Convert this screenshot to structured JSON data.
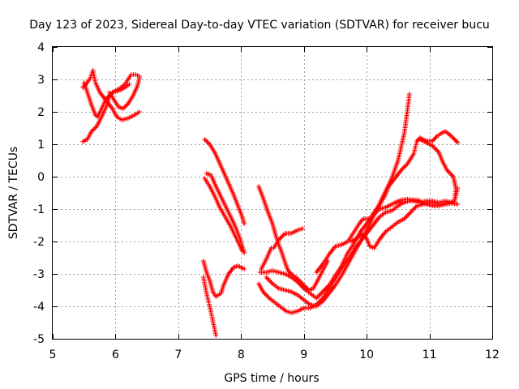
{
  "chart_data": {
    "type": "scatter",
    "title": "Day 123 of 2023, Sidereal Day-to-day VTEC variation (SDTVAR) for receiver bucu",
    "xlabel": "GPS time / hours",
    "ylabel": "SDTVAR / TECUs",
    "xlim": [
      5,
      12
    ],
    "ylim": [
      -5,
      4
    ],
    "xticks": [
      5,
      6,
      7,
      8,
      9,
      10,
      11,
      12
    ],
    "yticks": [
      -5,
      -4,
      -3,
      -2,
      -1,
      0,
      1,
      2,
      3,
      4
    ],
    "grid": true,
    "marker": "+",
    "color": "#ff0000",
    "series": [
      {
        "points": [
          [
            5.48,
            1.08
          ],
          [
            5.55,
            1.15
          ],
          [
            5.62,
            1.4
          ],
          [
            5.7,
            1.55
          ],
          [
            5.78,
            1.85
          ],
          [
            5.85,
            2.15
          ],
          [
            5.9,
            2.45
          ],
          [
            5.95,
            2.6
          ],
          [
            6.05,
            2.7
          ],
          [
            6.15,
            2.85
          ],
          [
            6.2,
            3.0
          ],
          [
            6.25,
            3.15
          ],
          [
            6.32,
            3.15
          ],
          [
            6.38,
            3.1
          ]
        ]
      },
      {
        "points": [
          [
            5.48,
            2.75
          ],
          [
            5.55,
            2.9
          ],
          [
            5.6,
            3.05
          ],
          [
            5.64,
            3.28
          ],
          [
            5.68,
            2.9
          ],
          [
            5.75,
            2.6
          ],
          [
            5.85,
            2.35
          ],
          [
            5.95,
            2.1
          ],
          [
            6.02,
            1.85
          ],
          [
            6.1,
            1.75
          ],
          [
            6.2,
            1.8
          ],
          [
            6.3,
            1.9
          ],
          [
            6.38,
            2.0
          ]
        ]
      },
      {
        "points": [
          [
            5.5,
            2.9
          ],
          [
            5.56,
            2.55
          ],
          [
            5.62,
            2.2
          ],
          [
            5.68,
            1.9
          ],
          [
            5.72,
            1.85
          ],
          [
            5.78,
            2.1
          ],
          [
            5.85,
            2.4
          ],
          [
            5.95,
            2.6
          ],
          [
            6.05,
            2.65
          ],
          [
            6.15,
            2.75
          ],
          [
            6.22,
            2.85
          ]
        ]
      },
      {
        "points": [
          [
            5.9,
            2.6
          ],
          [
            6.0,
            2.3
          ],
          [
            6.05,
            2.15
          ],
          [
            6.12,
            2.1
          ],
          [
            6.2,
            2.25
          ],
          [
            6.28,
            2.5
          ],
          [
            6.35,
            2.8
          ],
          [
            6.38,
            3.05
          ]
        ]
      },
      {
        "points": [
          [
            7.42,
            1.15
          ],
          [
            7.5,
            1.0
          ],
          [
            7.58,
            0.75
          ],
          [
            7.65,
            0.45
          ],
          [
            7.72,
            0.15
          ],
          [
            7.8,
            -0.2
          ],
          [
            7.88,
            -0.55
          ],
          [
            7.95,
            -0.9
          ],
          [
            8.02,
            -1.25
          ],
          [
            8.05,
            -1.45
          ]
        ]
      },
      {
        "points": [
          [
            7.45,
            0.1
          ],
          [
            7.52,
            0.05
          ],
          [
            7.6,
            -0.3
          ],
          [
            7.7,
            -0.7
          ],
          [
            7.8,
            -1.1
          ],
          [
            7.9,
            -1.5
          ],
          [
            7.98,
            -1.9
          ],
          [
            8.05,
            -2.35
          ]
        ]
      },
      {
        "points": [
          [
            7.42,
            -0.05
          ],
          [
            7.5,
            -0.3
          ],
          [
            7.58,
            -0.6
          ],
          [
            7.66,
            -0.95
          ],
          [
            7.75,
            -1.25
          ],
          [
            7.85,
            -1.6
          ],
          [
            7.95,
            -2.0
          ],
          [
            8.02,
            -2.3
          ]
        ]
      },
      {
        "points": [
          [
            7.4,
            -2.6
          ],
          [
            7.45,
            -2.95
          ],
          [
            7.5,
            -3.2
          ],
          [
            7.55,
            -3.55
          ],
          [
            7.6,
            -3.7
          ],
          [
            7.68,
            -3.6
          ],
          [
            7.72,
            -3.35
          ],
          [
            7.8,
            -3.0
          ],
          [
            7.88,
            -2.8
          ],
          [
            7.95,
            -2.75
          ],
          [
            8.05,
            -2.85
          ]
        ]
      },
      {
        "points": [
          [
            7.4,
            -3.1
          ],
          [
            7.45,
            -3.6
          ],
          [
            7.5,
            -4.0
          ],
          [
            7.55,
            -4.45
          ],
          [
            7.6,
            -4.9
          ]
        ]
      },
      {
        "points": [
          [
            8.28,
            -0.3
          ],
          [
            8.35,
            -0.65
          ],
          [
            8.42,
            -1.05
          ],
          [
            8.5,
            -1.45
          ],
          [
            8.55,
            -1.8
          ],
          [
            8.6,
            -2.1
          ],
          [
            8.65,
            -2.35
          ],
          [
            8.7,
            -2.65
          ],
          [
            8.75,
            -2.9
          ],
          [
            8.8,
            -3.0
          ],
          [
            8.9,
            -3.15
          ],
          [
            9.0,
            -3.35
          ],
          [
            9.08,
            -3.5
          ],
          [
            9.15,
            -3.45
          ],
          [
            9.22,
            -3.2
          ],
          [
            9.3,
            -2.9
          ],
          [
            9.38,
            -2.6
          ]
        ]
      },
      {
        "points": [
          [
            8.32,
            -2.85
          ],
          [
            8.4,
            -2.55
          ],
          [
            8.48,
            -2.2
          ],
          [
            8.52,
            -2.2
          ],
          [
            8.6,
            -1.95
          ],
          [
            8.7,
            -1.75
          ],
          [
            8.8,
            -1.75
          ],
          [
            8.9,
            -1.65
          ],
          [
            8.98,
            -1.6
          ]
        ]
      },
      {
        "points": [
          [
            8.28,
            -3.3
          ],
          [
            8.35,
            -3.55
          ],
          [
            8.45,
            -3.75
          ],
          [
            8.55,
            -3.9
          ],
          [
            8.65,
            -4.05
          ],
          [
            8.72,
            -4.15
          ],
          [
            8.8,
            -4.2
          ],
          [
            8.9,
            -4.15
          ],
          [
            9.0,
            -4.05
          ],
          [
            9.1,
            -4.05
          ],
          [
            9.2,
            -3.95
          ],
          [
            9.3,
            -3.75
          ],
          [
            9.4,
            -3.45
          ],
          [
            9.5,
            -3.15
          ],
          [
            9.6,
            -2.85
          ],
          [
            9.7,
            -2.55
          ],
          [
            9.8,
            -2.25
          ],
          [
            9.9,
            -2.0
          ],
          [
            10.0,
            -1.75
          ],
          [
            10.1,
            -1.5
          ],
          [
            10.2,
            -1.25
          ],
          [
            10.3,
            -1.1
          ],
          [
            10.4,
            -1.05
          ],
          [
            10.5,
            -0.9
          ],
          [
            10.6,
            -0.78
          ],
          [
            10.7,
            -0.75
          ],
          [
            10.8,
            -0.72
          ],
          [
            10.85,
            -0.75
          ]
        ]
      },
      {
        "points": [
          [
            8.3,
            -2.95
          ],
          [
            8.4,
            -2.95
          ],
          [
            8.5,
            -2.9
          ],
          [
            8.6,
            -2.95
          ],
          [
            8.7,
            -3.0
          ],
          [
            8.8,
            -3.1
          ],
          [
            8.9,
            -3.25
          ],
          [
            9.0,
            -3.45
          ],
          [
            9.1,
            -3.6
          ],
          [
            9.2,
            -3.75
          ],
          [
            9.3,
            -3.55
          ],
          [
            9.4,
            -3.35
          ],
          [
            9.5,
            -3.05
          ],
          [
            9.6,
            -2.75
          ],
          [
            9.7,
            -2.35
          ],
          [
            9.8,
            -2.05
          ],
          [
            9.9,
            -1.7
          ],
          [
            10.0,
            -1.45
          ],
          [
            10.1,
            -1.2
          ],
          [
            10.2,
            -1.0
          ],
          [
            10.3,
            -0.95
          ],
          [
            10.4,
            -0.85
          ],
          [
            10.5,
            -0.78
          ],
          [
            10.6,
            -0.8
          ]
        ]
      },
      {
        "points": [
          [
            8.4,
            -3.1
          ],
          [
            8.5,
            -3.3
          ],
          [
            8.6,
            -3.45
          ],
          [
            8.7,
            -3.5
          ],
          [
            8.8,
            -3.55
          ],
          [
            8.9,
            -3.65
          ],
          [
            9.0,
            -3.8
          ],
          [
            9.1,
            -3.95
          ],
          [
            9.2,
            -4.0
          ],
          [
            9.3,
            -3.85
          ],
          [
            9.4,
            -3.6
          ],
          [
            9.5,
            -3.35
          ],
          [
            9.6,
            -3.05
          ],
          [
            9.7,
            -2.7
          ],
          [
            9.8,
            -2.35
          ],
          [
            9.9,
            -2.0
          ],
          [
            10.0,
            -1.65
          ],
          [
            10.1,
            -1.25
          ],
          [
            10.2,
            -0.85
          ],
          [
            10.3,
            -0.45
          ],
          [
            10.4,
            -0.05
          ],
          [
            10.5,
            0.5
          ],
          [
            10.6,
            1.35
          ],
          [
            10.65,
            2.05
          ],
          [
            10.68,
            2.55
          ]
        ]
      },
      {
        "points": [
          [
            9.2,
            -2.95
          ],
          [
            9.3,
            -2.7
          ],
          [
            9.4,
            -2.4
          ],
          [
            9.5,
            -2.15
          ],
          [
            9.6,
            -2.1
          ],
          [
            9.7,
            -2.0
          ],
          [
            9.8,
            -1.7
          ],
          [
            9.85,
            -1.55
          ],
          [
            9.9,
            -1.4
          ],
          [
            9.95,
            -1.3
          ],
          [
            10.05,
            -1.3
          ],
          [
            10.1,
            -1.15
          ],
          [
            10.2,
            -0.9
          ],
          [
            10.3,
            -0.55
          ],
          [
            10.35,
            -0.3
          ],
          [
            10.45,
            -0.05
          ],
          [
            10.55,
            0.2
          ],
          [
            10.65,
            0.4
          ],
          [
            10.75,
            0.7
          ],
          [
            10.8,
            1.1
          ],
          [
            10.85,
            1.2
          ],
          [
            10.95,
            1.1
          ],
          [
            11.05,
            1.1
          ],
          [
            11.12,
            1.25
          ],
          [
            11.2,
            1.35
          ],
          [
            11.25,
            1.4
          ],
          [
            11.32,
            1.3
          ],
          [
            11.4,
            1.15
          ],
          [
            11.45,
            1.05
          ]
        ]
      },
      {
        "points": [
          [
            9.75,
            -2.0
          ],
          [
            9.85,
            -1.9
          ],
          [
            9.92,
            -1.75
          ],
          [
            10.0,
            -1.9
          ],
          [
            10.05,
            -2.15
          ],
          [
            10.12,
            -2.2
          ],
          [
            10.2,
            -1.95
          ],
          [
            10.3,
            -1.7
          ],
          [
            10.4,
            -1.55
          ],
          [
            10.5,
            -1.4
          ],
          [
            10.6,
            -1.3
          ],
          [
            10.7,
            -1.1
          ],
          [
            10.8,
            -0.9
          ],
          [
            10.9,
            -0.85
          ],
          [
            11.0,
            -0.8
          ],
          [
            11.1,
            -0.85
          ],
          [
            11.2,
            -0.85
          ],
          [
            11.3,
            -0.8
          ],
          [
            11.4,
            -0.75
          ],
          [
            11.45,
            -0.35
          ]
        ]
      },
      {
        "points": [
          [
            10.85,
            1.15
          ],
          [
            10.95,
            1.05
          ],
          [
            11.05,
            0.95
          ],
          [
            11.15,
            0.75
          ],
          [
            11.2,
            0.5
          ],
          [
            11.28,
            0.2
          ],
          [
            11.38,
            0.0
          ],
          [
            11.42,
            -0.35
          ],
          [
            11.4,
            -0.75
          ],
          [
            11.35,
            -0.8
          ],
          [
            11.25,
            -0.75
          ],
          [
            11.15,
            -0.8
          ],
          [
            11.05,
            -0.75
          ],
          [
            10.95,
            -0.75
          ],
          [
            10.85,
            -0.8
          ],
          [
            10.75,
            -0.75
          ]
        ]
      },
      {
        "points": [
          [
            10.45,
            -0.8
          ],
          [
            10.55,
            -0.72
          ],
          [
            10.65,
            -0.7
          ],
          [
            10.75,
            -0.72
          ],
          [
            10.85,
            -0.8
          ],
          [
            10.95,
            -0.85
          ],
          [
            11.05,
            -0.9
          ],
          [
            11.15,
            -0.9
          ],
          [
            11.25,
            -0.85
          ],
          [
            11.35,
            -0.82
          ],
          [
            11.45,
            -0.85
          ]
        ]
      }
    ]
  }
}
